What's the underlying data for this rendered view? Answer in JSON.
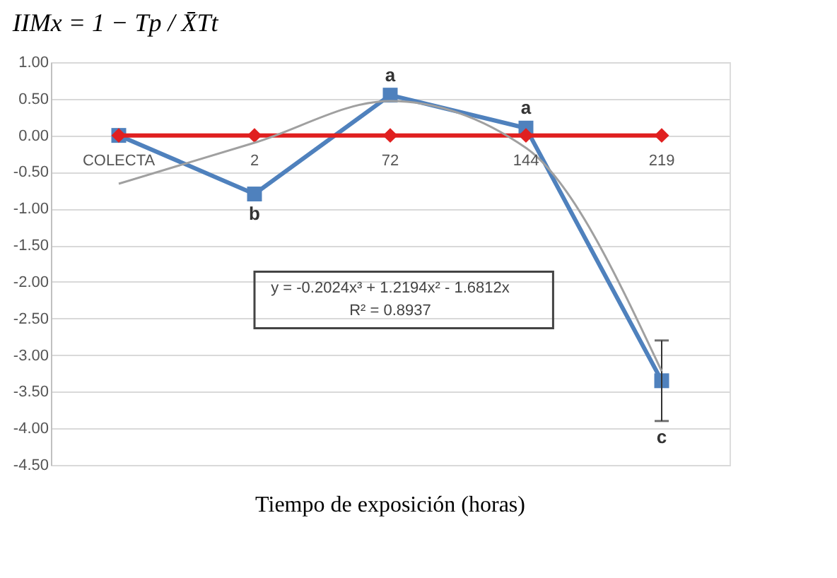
{
  "chart_data": {
    "type": "line",
    "title": "IIMx = 1 − Tp / X̄Tt",
    "xlabel": "Tiempo de exposición (horas)",
    "categories": [
      "COLECTA",
      "2",
      "72",
      "144",
      "219"
    ],
    "series": [
      {
        "color": "#4f81bd",
        "marker": "square",
        "values": [
          0,
          -0.8,
          0.55,
          0.1,
          -3.35
        ],
        "errors": [
          null,
          null,
          null,
          null,
          [
            -3.9,
            -2.8
          ]
        ]
      },
      {
        "color": "#e02020",
        "marker": "diamond",
        "values": [
          0,
          0,
          0,
          0,
          0
        ]
      },
      {
        "type": "line",
        "color": "#a0a0a0",
        "marker": "none",
        "values": [
          -0.66,
          -0.1,
          0.47,
          -0.17,
          -3.22
        ]
      }
    ],
    "ylim": [
      -4.5,
      1
    ],
    "yticks": [
      {
        "value": 1,
        "label": "1.00"
      },
      {
        "value": 0.5,
        "label": "0.50"
      },
      {
        "value": 0,
        "label": "0.00"
      },
      {
        "value": -0.5,
        "label": "-0.50"
      },
      {
        "value": -1,
        "label": "-1.00"
      },
      {
        "value": -1.5,
        "label": "-1.50"
      },
      {
        "value": -2,
        "label": "-2.00"
      },
      {
        "value": -2.5,
        "label": "-2.50"
      },
      {
        "value": -3,
        "label": "-3.00"
      },
      {
        "value": -3.5,
        "label": "-3.50"
      },
      {
        "value": -4,
        "label": "-4.00"
      },
      {
        "value": -4.5,
        "label": "-4.50"
      }
    ],
    "grid": "y",
    "annotations": [
      {
        "text": "b",
        "x": "2",
        "y": -0.8
      },
      {
        "text": "a",
        "x": "72",
        "y": 0.55
      },
      {
        "text": "a",
        "x": "144",
        "y": 0.1
      },
      {
        "text": "c",
        "x": "219",
        "y": -3.35
      },
      "y = -0.2024x³ + 1.2194x² - 1.6812x",
      "R² = 0.8937"
    ]
  }
}
